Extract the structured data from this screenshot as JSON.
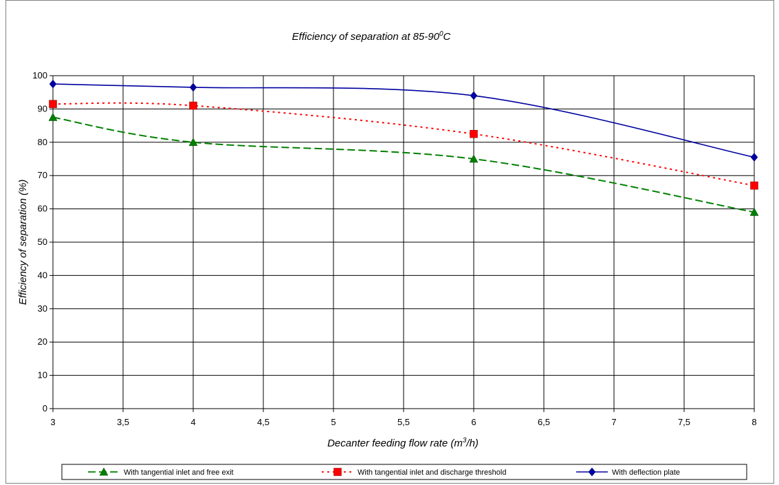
{
  "chart_data": {
    "type": "line",
    "title": "Efficiency of separation at 85-90",
    "title_sup": "0",
    "title_unit": "C",
    "xlabel": "Decanter feeding flow rate (m",
    "xlabel_sup": "3",
    "xlabel_end": "/h)",
    "ylabel": "Efficiency of separation (%)",
    "xlim": [
      3,
      8
    ],
    "ylim": [
      0,
      100
    ],
    "xticks": [
      "3",
      "3,5",
      "4",
      "4,5",
      "5",
      "5,5",
      "6",
      "6,5",
      "7",
      "7,5",
      "8"
    ],
    "yticks": [
      "0",
      "10",
      "20",
      "30",
      "40",
      "50",
      "60",
      "70",
      "80",
      "90",
      "100"
    ],
    "grid": true,
    "legend_position": "bottom",
    "series": [
      {
        "name": "With tangential inlet and free exit",
        "color": "#008000",
        "marker": "triangle",
        "dash": "long-dash",
        "x": [
          3,
          4,
          6,
          8
        ],
        "y": [
          87.5,
          80,
          75,
          59
        ]
      },
      {
        "name": "With tangential inlet and discharge threshold",
        "color": "#ff0000",
        "marker": "square",
        "dash": "dotted",
        "x": [
          3,
          4,
          6,
          8
        ],
        "y": [
          91.5,
          91,
          82.5,
          67
        ]
      },
      {
        "name": "With deflection plate",
        "color": "#0000a0",
        "marker": "diamond",
        "dash": "solid",
        "x": [
          3,
          4,
          6,
          8
        ],
        "y": [
          97.5,
          96.5,
          94,
          75.5
        ]
      }
    ]
  }
}
